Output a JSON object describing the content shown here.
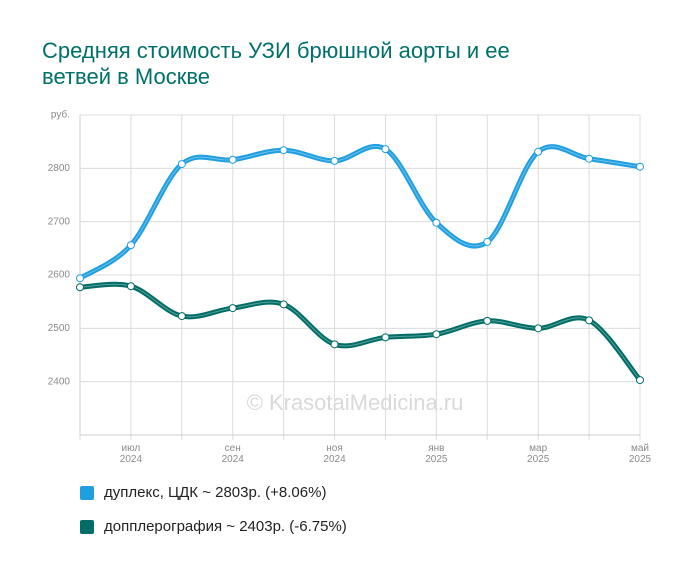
{
  "chart_data": {
    "type": "line",
    "title": "Средняя стоимость УЗИ брюшной аорты и ее ветвей в Москве",
    "watermark": "© KrasotaiMedicina.ru",
    "categories": [
      null,
      "июл\n2024",
      null,
      "сен\n2024",
      null,
      "ноя\n2024",
      null,
      "янв\n2025",
      null,
      "мар\n2025",
      null,
      "май\n2025"
    ],
    "series": [
      {
        "name": "дуплекс, ЦДК ~ 2803р. (+8.06%)",
        "color": "#1f9fe0",
        "values": [
          2594,
          2656,
          2808,
          2816,
          2834,
          2814,
          2836,
          2698,
          2662,
          2831,
          2818,
          2803
        ]
      },
      {
        "name": "допплерография ~ 2403р. (-6.75%)",
        "color": "#006d66",
        "values": [
          2577,
          2579,
          2523,
          2538,
          2545,
          2470,
          2483,
          2489,
          2514,
          2500,
          2515,
          2403
        ]
      }
    ],
    "ylim": [
      2300,
      2900
    ],
    "yticks": [
      {
        "value": 2900,
        "label": "руб."
      },
      2800,
      2700,
      2600,
      2500,
      2400
    ],
    "grid": true
  }
}
